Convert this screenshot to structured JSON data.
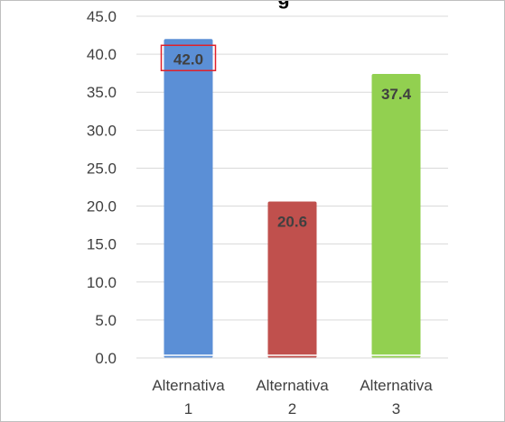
{
  "chart_data": {
    "type": "bar",
    "title": "g",
    "categories": [
      [
        "Alternativa",
        "1"
      ],
      [
        "Alternativa",
        "2"
      ],
      [
        "Alternativa",
        "3"
      ]
    ],
    "values": [
      42.0,
      20.6,
      37.4
    ],
    "data_labels": [
      "42.0",
      "20.6",
      "37.4"
    ],
    "colors": [
      "#5b8fd6",
      "#c0504d",
      "#92d050"
    ],
    "highlight_color": "#e0202a",
    "highlighted_label_index": 0,
    "ylim": [
      0,
      45
    ],
    "yticks": [
      "0.0",
      "5.0",
      "10.0",
      "15.0",
      "20.0",
      "25.0",
      "30.0",
      "35.0",
      "40.0",
      "45.0"
    ],
    "grid": true,
    "legend": "none"
  }
}
